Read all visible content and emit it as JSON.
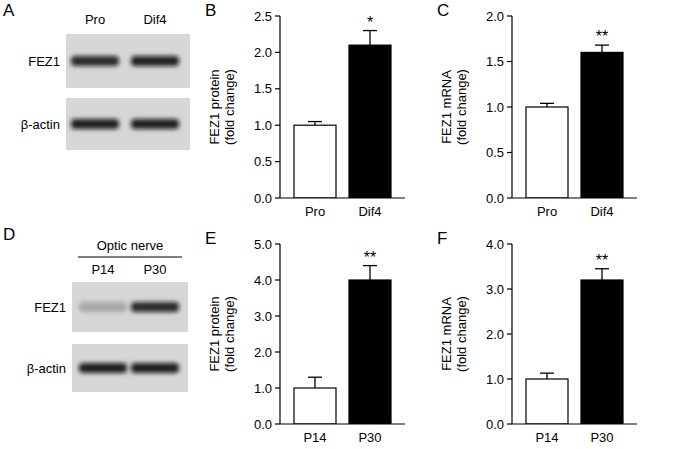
{
  "chart_data": [
    {
      "type": "bar",
      "panel_label": "B",
      "y_label": [
        "FEZ1 protein",
        "(fold change)"
      ],
      "categories": [
        "Pro",
        "Dif4"
      ],
      "values": [
        1.0,
        2.1
      ],
      "errors": [
        0.05,
        0.2
      ],
      "significance": [
        null,
        "*"
      ],
      "colors": [
        "#ffffff",
        "#000000"
      ],
      "ylim": [
        0,
        2.5
      ],
      "yticks": [
        {
          "value": 0,
          "label": "0.0"
        },
        {
          "value": 0.5,
          "label": "0.5"
        },
        {
          "value": 1,
          "label": "1.0"
        },
        {
          "value": 1.5,
          "label": "1.5"
        },
        {
          "value": 2,
          "label": "2.0"
        },
        {
          "value": 2.5,
          "label": "2.5"
        }
      ],
      "grid": false
    },
    {
      "type": "bar",
      "panel_label": "C",
      "y_label": [
        "FEZ1 mRNA",
        "(fold change)"
      ],
      "categories": [
        "Pro",
        "Dif4"
      ],
      "values": [
        1.0,
        1.6
      ],
      "errors": [
        0.04,
        0.08
      ],
      "significance": [
        null,
        "**"
      ],
      "colors": [
        "#ffffff",
        "#000000"
      ],
      "ylim": [
        0,
        2
      ],
      "yticks": [
        {
          "value": 0,
          "label": "0.0"
        },
        {
          "value": 0.5,
          "label": "0.5"
        },
        {
          "value": 1,
          "label": "1.0"
        },
        {
          "value": 1.5,
          "label": "1.5"
        },
        {
          "value": 2,
          "label": "2.0"
        }
      ],
      "grid": false
    },
    {
      "type": "bar",
      "panel_label": "E",
      "y_label": [
        "FEZ1 protein",
        "(fold change)"
      ],
      "categories": [
        "P14",
        "P30"
      ],
      "values": [
        1.0,
        4.0
      ],
      "errors": [
        0.3,
        0.4
      ],
      "significance": [
        null,
        "**"
      ],
      "colors": [
        "#ffffff",
        "#000000"
      ],
      "ylim": [
        0,
        5
      ],
      "yticks": [
        {
          "value": 0,
          "label": "0.0"
        },
        {
          "value": 1,
          "label": "1.0"
        },
        {
          "value": 2,
          "label": "2.0"
        },
        {
          "value": 3,
          "label": "3.0"
        },
        {
          "value": 4,
          "label": "4.0"
        },
        {
          "value": 5,
          "label": "5.0"
        }
      ],
      "grid": false
    },
    {
      "type": "bar",
      "panel_label": "F",
      "y_label": [
        "FEZ1 mRNA",
        "(fold change)"
      ],
      "categories": [
        "P14",
        "P30"
      ],
      "values": [
        1.0,
        3.2
      ],
      "errors": [
        0.13,
        0.25
      ],
      "significance": [
        null,
        "**"
      ],
      "colors": [
        "#ffffff",
        "#000000"
      ],
      "ylim": [
        0,
        4
      ],
      "yticks": [
        {
          "value": 0,
          "label": "0.0"
        },
        {
          "value": 1,
          "label": "1.0"
        },
        {
          "value": 2,
          "label": "2.0"
        },
        {
          "value": 3,
          "label": "3.0"
        },
        {
          "value": 4,
          "label": "4.0"
        }
      ],
      "grid": false
    }
  ],
  "blots": [
    {
      "panel_label": "A",
      "lanes": [
        "Pro",
        "Dif4"
      ],
      "rows": [
        "FEZ1",
        "β-actin"
      ]
    },
    {
      "panel_label": "D",
      "header": "Optic nerve",
      "lanes": [
        "P14",
        "P30"
      ],
      "rows": [
        "FEZ1",
        "β-actin"
      ]
    }
  ]
}
